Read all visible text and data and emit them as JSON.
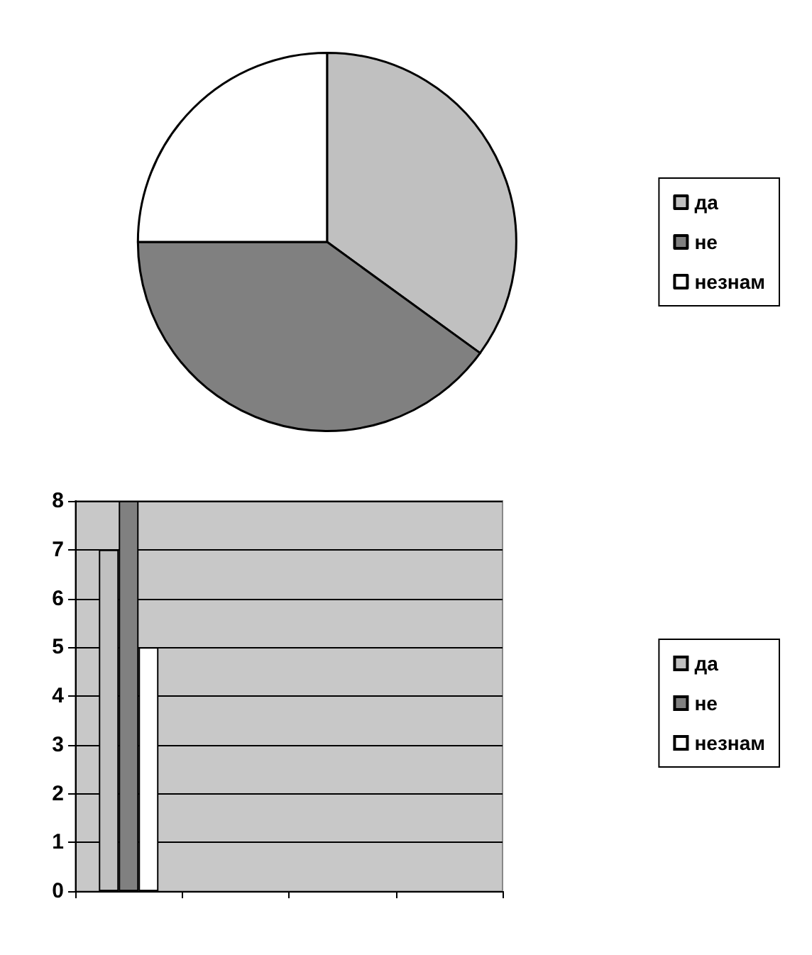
{
  "chart_data": [
    {
      "type": "pie",
      "categories": [
        "да",
        "не",
        "незнам"
      ],
      "values": [
        35,
        40,
        25
      ],
      "colors": [
        "#c0c0c0",
        "#808080",
        "#ffffff"
      ],
      "legend": "right"
    },
    {
      "type": "bar",
      "categories": [
        null,
        null,
        null,
        null
      ],
      "series": [
        {
          "name": "да",
          "color": "#c0c0c0",
          "values": [
            7,
            null,
            null,
            null
          ]
        },
        {
          "name": "не",
          "color": "#808080",
          "values": [
            8,
            null,
            null,
            null
          ]
        },
        {
          "name": "незнам",
          "color": "#ffffff",
          "values": [
            5,
            null,
            null,
            null
          ]
        }
      ],
      "ylim": [
        0,
        8
      ],
      "yticks": [
        0,
        1,
        2,
        3,
        4,
        5,
        6,
        7,
        8
      ],
      "grid": "y",
      "legend": "right"
    }
  ]
}
